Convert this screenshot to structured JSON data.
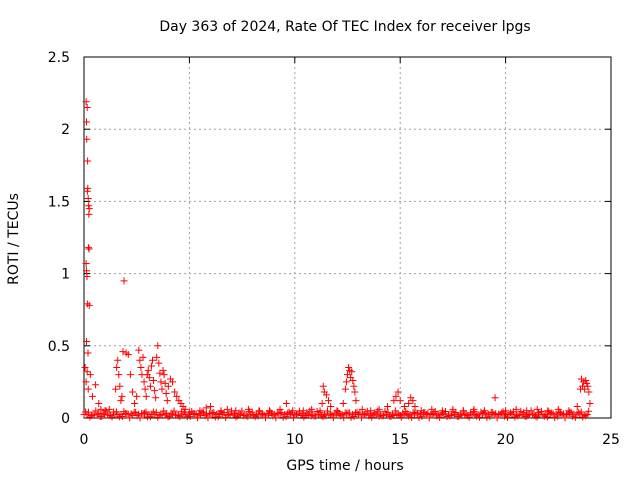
{
  "chart_data": {
    "type": "scatter",
    "title": "Day 363 of 2024, Rate Of TEC Index for receiver lpgs",
    "xlabel": "GPS time / hours",
    "ylabel": "ROTI / TECUs",
    "xlim": [
      0,
      25
    ],
    "ylim": [
      0,
      2.5
    ],
    "xticks": [
      0,
      5,
      10,
      15,
      20,
      25
    ],
    "xtick_labels": [
      "0",
      "5",
      "10",
      "15",
      "20",
      "25"
    ],
    "yticks": [
      0,
      0.5,
      1,
      1.5,
      2,
      2.5
    ],
    "ytick_labels": [
      "0",
      "0.5",
      "1",
      "1.5",
      "2",
      "2.5"
    ],
    "grid": true,
    "marker": "+",
    "series": [
      {
        "name": "ROTI",
        "color": "#ff0000",
        "points": [
          [
            0.1,
            2.19
          ],
          [
            0.15,
            2.15
          ],
          [
            0.12,
            2.05
          ],
          [
            0.13,
            1.93
          ],
          [
            0.17,
            1.78
          ],
          [
            0.18,
            1.59
          ],
          [
            0.16,
            1.57
          ],
          [
            0.2,
            1.52
          ],
          [
            0.22,
            1.47
          ],
          [
            0.25,
            1.45
          ],
          [
            0.23,
            1.41
          ],
          [
            0.21,
            1.18
          ],
          [
            0.24,
            1.17
          ],
          [
            0.1,
            1.07
          ],
          [
            0.12,
            1.02
          ],
          [
            0.14,
            0.98
          ],
          [
            0.16,
            0.79
          ],
          [
            0.25,
            0.78
          ],
          [
            0.12,
            0.53
          ],
          [
            0.19,
            0.45
          ],
          [
            0.05,
            0.35
          ],
          [
            0.15,
            0.32
          ],
          [
            0.3,
            0.3
          ],
          [
            0.1,
            0.25
          ],
          [
            0.2,
            0.2
          ],
          [
            0.4,
            0.15
          ],
          [
            0.55,
            0.23
          ],
          [
            0.7,
            0.1
          ],
          [
            0.8,
            0.06
          ],
          [
            1.0,
            0.05
          ],
          [
            1.2,
            0.06
          ],
          [
            1.5,
            0.2
          ],
          [
            1.55,
            0.35
          ],
          [
            1.6,
            0.4
          ],
          [
            1.65,
            0.3
          ],
          [
            1.7,
            0.22
          ],
          [
            1.75,
            0.12
          ],
          [
            1.8,
            0.15
          ],
          [
            1.85,
            0.46
          ],
          [
            1.9,
            0.95
          ],
          [
            2.0,
            0.45
          ],
          [
            2.1,
            0.44
          ],
          [
            2.2,
            0.3
          ],
          [
            2.3,
            0.18
          ],
          [
            2.4,
            0.1
          ],
          [
            2.5,
            0.15
          ],
          [
            2.6,
            0.47
          ],
          [
            2.65,
            0.4
          ],
          [
            2.7,
            0.35
          ],
          [
            2.75,
            0.3
          ],
          [
            2.8,
            0.42
          ],
          [
            2.85,
            0.25
          ],
          [
            2.9,
            0.2
          ],
          [
            2.95,
            0.15
          ],
          [
            3.0,
            0.3
          ],
          [
            3.05,
            0.33
          ],
          [
            3.1,
            0.28
          ],
          [
            3.15,
            0.22
          ],
          [
            3.2,
            0.36
          ],
          [
            3.25,
            0.4
          ],
          [
            3.3,
            0.26
          ],
          [
            3.35,
            0.19
          ],
          [
            3.4,
            0.14
          ],
          [
            3.45,
            0.42
          ],
          [
            3.5,
            0.5
          ],
          [
            3.55,
            0.38
          ],
          [
            3.6,
            0.31
          ],
          [
            3.65,
            0.25
          ],
          [
            3.7,
            0.2
          ],
          [
            3.75,
            0.33
          ],
          [
            3.8,
            0.3
          ],
          [
            3.85,
            0.24
          ],
          [
            3.9,
            0.17
          ],
          [
            3.95,
            0.12
          ],
          [
            4.0,
            0.22
          ],
          [
            4.1,
            0.27
          ],
          [
            4.2,
            0.25
          ],
          [
            4.3,
            0.18
          ],
          [
            4.4,
            0.15
          ],
          [
            4.5,
            0.12
          ],
          [
            4.6,
            0.1
          ],
          [
            4.7,
            0.08
          ],
          [
            4.8,
            0.06
          ],
          [
            5.0,
            0.04
          ],
          [
            5.5,
            0.05
          ],
          [
            5.8,
            0.07
          ],
          [
            6.0,
            0.08
          ],
          [
            6.5,
            0.05
          ],
          [
            6.8,
            0.06
          ],
          [
            7.2,
            0.05
          ],
          [
            7.8,
            0.06
          ],
          [
            8.3,
            0.05
          ],
          [
            8.8,
            0.05
          ],
          [
            9.3,
            0.06
          ],
          [
            9.6,
            0.1
          ],
          [
            9.9,
            0.05
          ],
          [
            10.4,
            0.05
          ],
          [
            10.8,
            0.06
          ],
          [
            11.2,
            0.05
          ],
          [
            11.3,
            0.1
          ],
          [
            11.35,
            0.22
          ],
          [
            11.4,
            0.18
          ],
          [
            11.5,
            0.16
          ],
          [
            11.6,
            0.12
          ],
          [
            11.7,
            0.08
          ],
          [
            12.0,
            0.05
          ],
          [
            12.3,
            0.1
          ],
          [
            12.4,
            0.2
          ],
          [
            12.45,
            0.25
          ],
          [
            12.5,
            0.3
          ],
          [
            12.55,
            0.35
          ],
          [
            12.6,
            0.33
          ],
          [
            12.65,
            0.28
          ],
          [
            12.7,
            0.32
          ],
          [
            12.75,
            0.26
          ],
          [
            12.8,
            0.22
          ],
          [
            12.85,
            0.18
          ],
          [
            12.9,
            0.12
          ],
          [
            13.2,
            0.06
          ],
          [
            13.6,
            0.05
          ],
          [
            14.0,
            0.06
          ],
          [
            14.4,
            0.08
          ],
          [
            14.7,
            0.12
          ],
          [
            14.8,
            0.15
          ],
          [
            14.9,
            0.18
          ],
          [
            15.0,
            0.12
          ],
          [
            15.2,
            0.08
          ],
          [
            15.4,
            0.1
          ],
          [
            15.5,
            0.14
          ],
          [
            15.6,
            0.12
          ],
          [
            15.7,
            0.08
          ],
          [
            16.0,
            0.05
          ],
          [
            16.5,
            0.06
          ],
          [
            17.0,
            0.05
          ],
          [
            17.5,
            0.06
          ],
          [
            18.0,
            0.05
          ],
          [
            18.5,
            0.06
          ],
          [
            19.0,
            0.05
          ],
          [
            19.5,
            0.14
          ],
          [
            20.0,
            0.05
          ],
          [
            20.5,
            0.06
          ],
          [
            21.0,
            0.05
          ],
          [
            21.5,
            0.06
          ],
          [
            22.0,
            0.05
          ],
          [
            22.5,
            0.06
          ],
          [
            23.0,
            0.05
          ],
          [
            23.4,
            0.08
          ],
          [
            23.55,
            0.2
          ],
          [
            23.6,
            0.27
          ],
          [
            23.65,
            0.22
          ],
          [
            23.7,
            0.25
          ],
          [
            23.75,
            0.2
          ],
          [
            23.8,
            0.26
          ],
          [
            23.85,
            0.24
          ],
          [
            23.9,
            0.22
          ],
          [
            23.95,
            0.18
          ],
          [
            24.0,
            0.1
          ]
        ],
        "baseline_band": {
          "from": 0.0,
          "to": 24.0,
          "min": 0.0,
          "max": 0.05
        }
      }
    ]
  }
}
